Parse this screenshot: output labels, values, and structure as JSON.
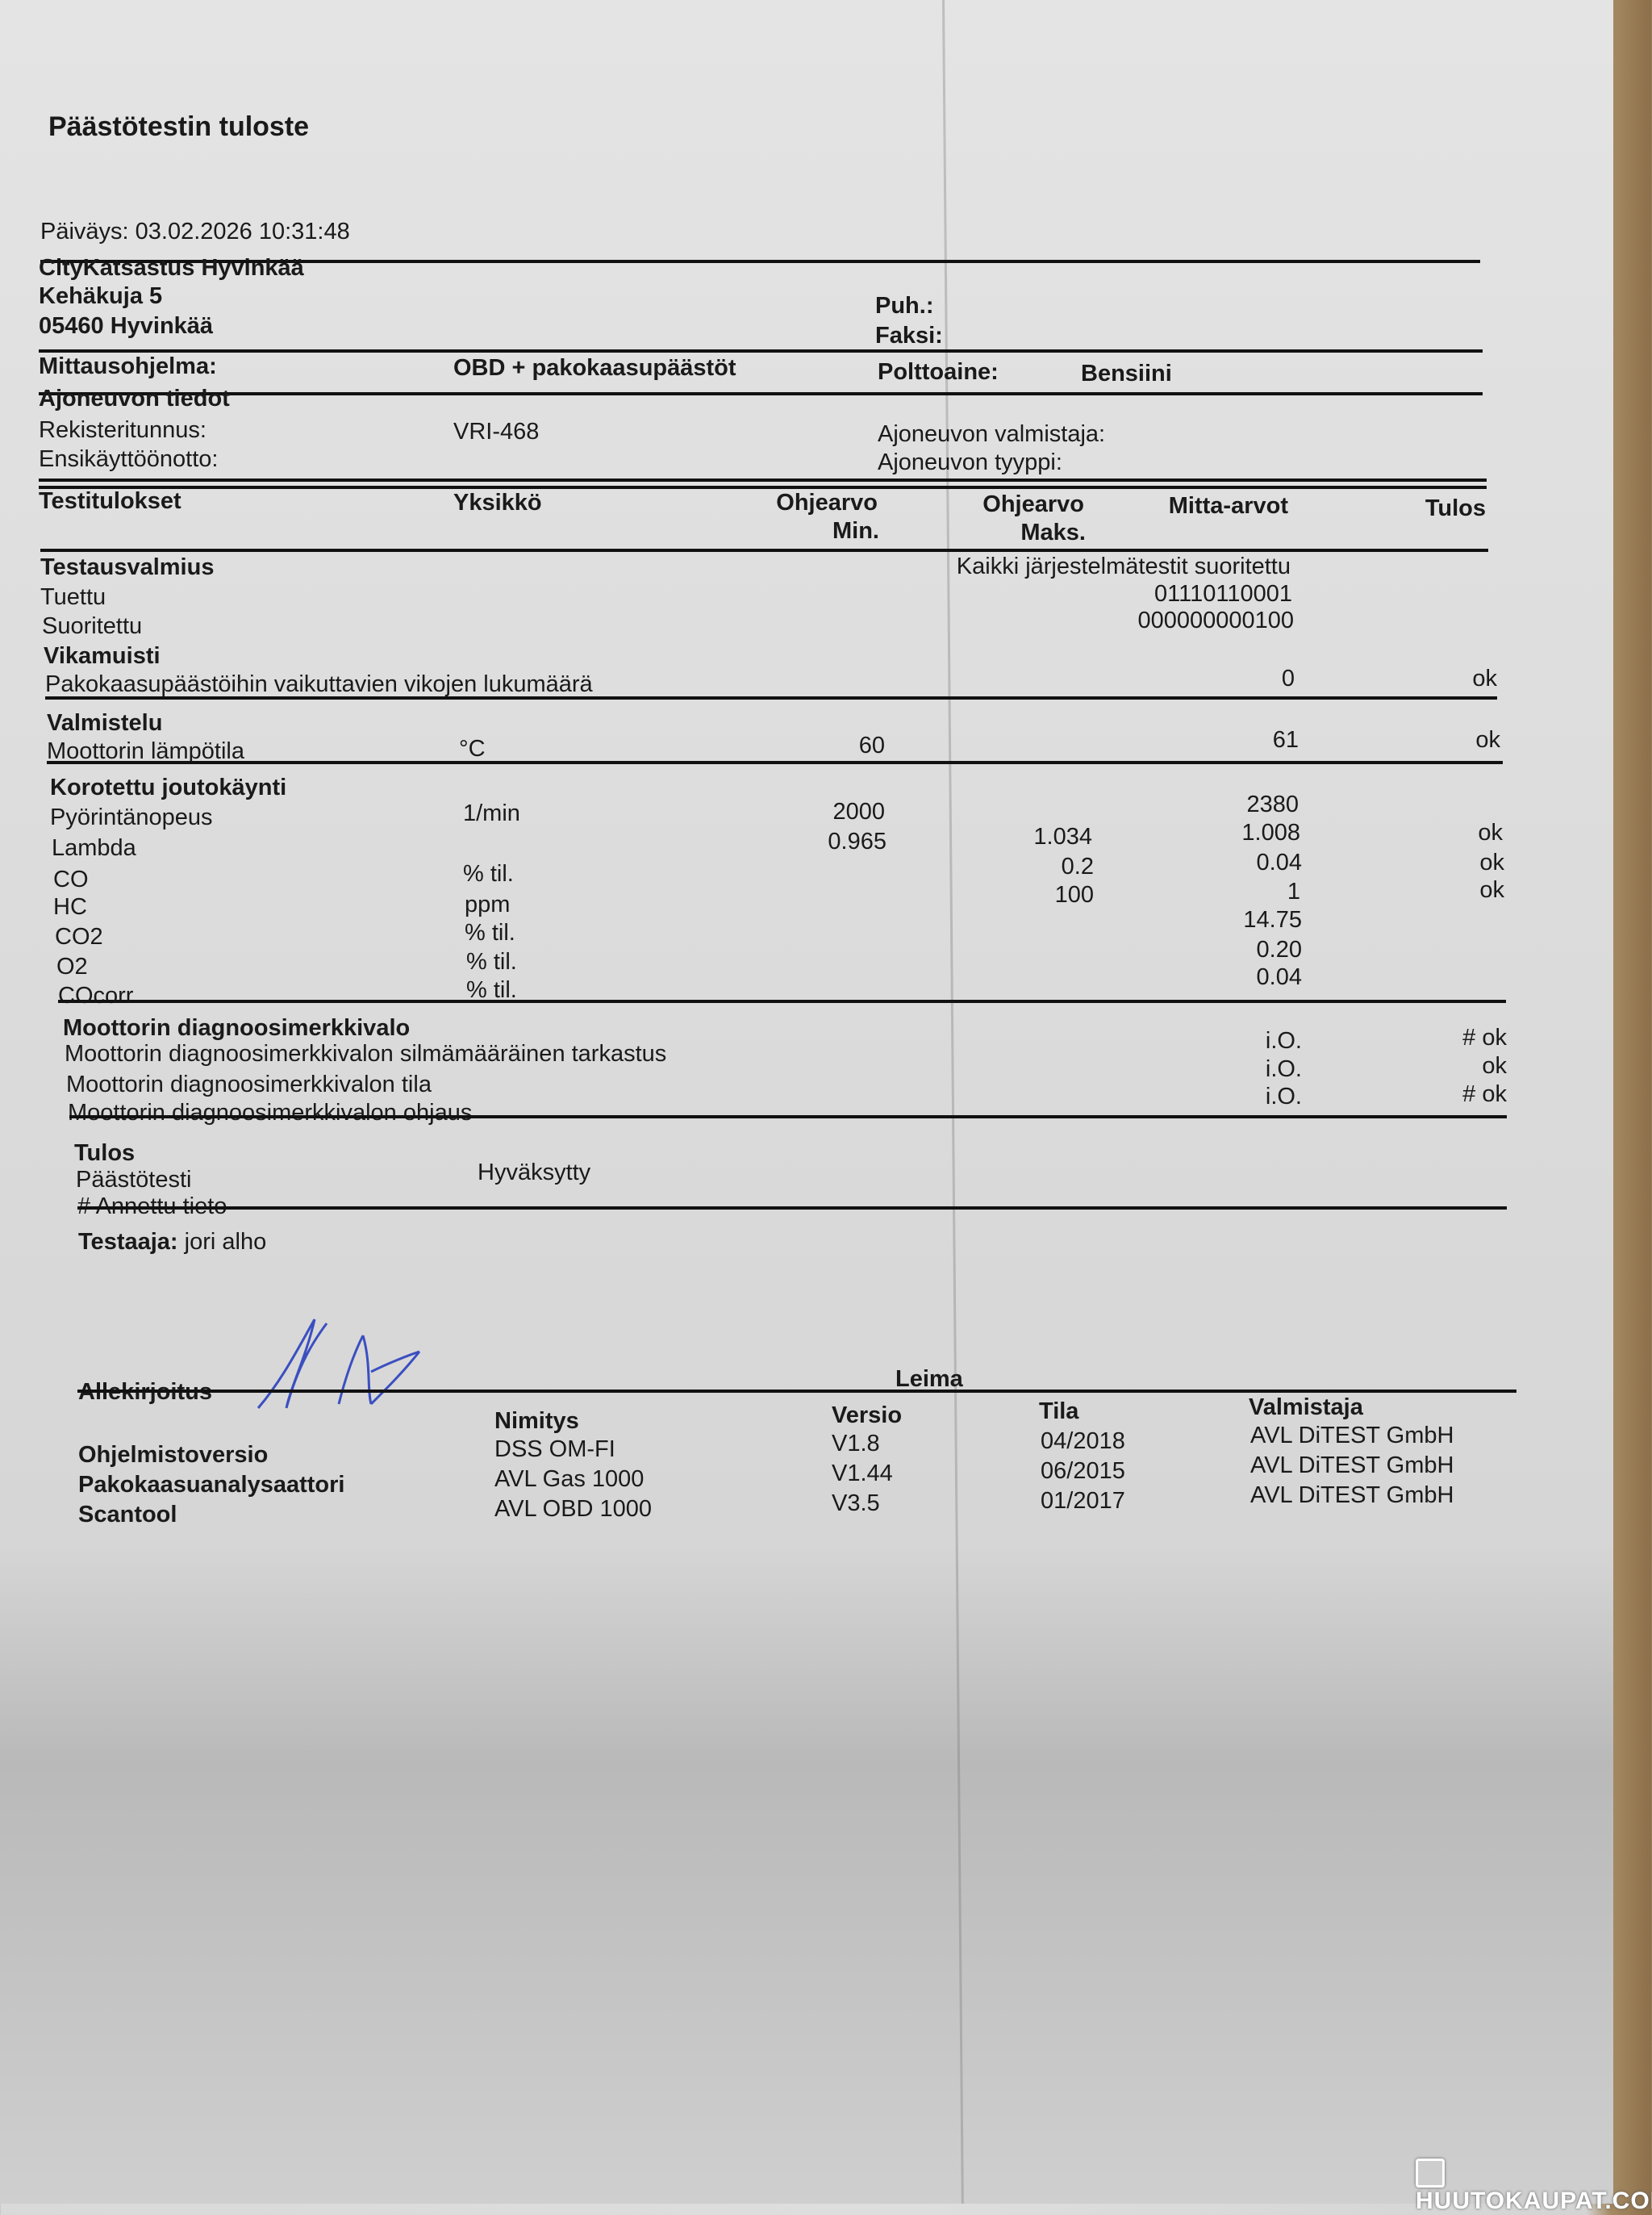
{
  "title": "Päästötestin tuloste",
  "date": "Päiväys: 03.02.2026 10:31:48",
  "station": {
    "name": "CityKatsastus Hyvinkää",
    "street": "Kehäkuja 5",
    "city": "05460  Hyvinkää",
    "phone_label": "Puh.:",
    "fax_label": "Faksi:"
  },
  "program": {
    "label": "Mittausohjelma:",
    "value": "OBD + pakokaasupäästöt",
    "fuel_label": "Polttoaine:",
    "fuel_value": "Bensiini"
  },
  "vehicle": {
    "heading": "Ajoneuvon tiedot",
    "reg_label": "Rekisteritunnus:",
    "reg_value": "VRI-468",
    "first_use_label": "Ensikäyttöönotto:",
    "maker_label": "Ajoneuvon valmistaja:",
    "type_label": "Ajoneuvon tyyppi:"
  },
  "table_header": {
    "test": "Testitulokset",
    "unit": "Yksikkö",
    "min_1": "Ohjearvo",
    "min_2": "Min.",
    "max_1": "Ohjearvo",
    "max_2": "Maks.",
    "measured": "Mitta-arvot",
    "result": "Tulos"
  },
  "readiness": {
    "heading": "Testausvalmius",
    "status": "Kaikki järjestelmätestit suoritettu",
    "supported_label": "Tuettu",
    "supported_value": "01110110001",
    "completed_label": "Suoritettu",
    "completed_value": "000000000100"
  },
  "fault_memory": {
    "heading": "Vikamuisti",
    "label": "Pakokaasupäästöihin vaikuttavien vikojen lukumäärä",
    "value": "0",
    "result": "ok"
  },
  "preparation": {
    "heading": "Valmistelu",
    "label": "Moottorin lämpötila",
    "unit": "°C",
    "min": "60",
    "value": "61",
    "result": "ok"
  },
  "idle": {
    "heading": "Korotettu joutokäynti",
    "rows": [
      {
        "label": "Pyörintänopeus",
        "unit": "1/min",
        "min": "2000",
        "max": "",
        "value": "2380",
        "result": ""
      },
      {
        "label": "Lambda",
        "unit": "",
        "min": "0.965",
        "max": "1.034",
        "value": "1.008",
        "result": "ok"
      },
      {
        "label": "CO",
        "unit": "% til.",
        "min": "",
        "max": "0.2",
        "value": "0.04",
        "result": "ok"
      },
      {
        "label": "HC",
        "unit": "ppm",
        "min": "",
        "max": "100",
        "value": "1",
        "result": "ok"
      },
      {
        "label": "CO2",
        "unit": "% til.",
        "min": "",
        "max": "",
        "value": "14.75",
        "result": ""
      },
      {
        "label": "O2",
        "unit": "% til.",
        "min": "",
        "max": "",
        "value": "0.20",
        "result": ""
      },
      {
        "label": "COcorr",
        "unit": "% til.",
        "min": "",
        "max": "",
        "value": "0.04",
        "result": ""
      }
    ]
  },
  "mil": {
    "heading": "Moottorin diagnoosimerkkivalo",
    "rows": [
      {
        "label": "Moottorin diagnoosimerkkivalon silmämääräinen tarkastus",
        "value": "i.O.",
        "result": "# ok"
      },
      {
        "label": "Moottorin diagnoosimerkkivalon tila",
        "value": "i.O.",
        "result": "ok"
      },
      {
        "label": "Moottorin diagnoosimerkkivalon ohjaus",
        "value": "i.O.",
        "result": "# ok"
      }
    ]
  },
  "outcome": {
    "heading": "Tulos",
    "label": "Päästötesti",
    "value": "Hyväksytty",
    "note": "# Annettu tieto"
  },
  "tester": {
    "label": "Testaaja:",
    "name": "jori alho"
  },
  "signature": {
    "label": "Allekirjoitus",
    "stamp_label": "Leima"
  },
  "software": {
    "headers": {
      "name": "Nimitys",
      "version": "Versio",
      "date": "Tila",
      "maker": "Valmistaja"
    },
    "rows": [
      {
        "label": "Ohjelmistoversio",
        "name": "DSS OM-FI",
        "version": "V1.8",
        "date": "04/2018",
        "maker": "AVL DiTEST GmbH"
      },
      {
        "label": "Pakokaasuanalysaattori",
        "name": "AVL Gas 1000",
        "version": "V1.44",
        "date": "06/2015",
        "maker": "AVL DiTEST GmbH"
      },
      {
        "label": "Scantool",
        "name": "AVL OBD 1000",
        "version": "V3.5",
        "date": "01/2017",
        "maker": "AVL DiTEST GmbH"
      }
    ]
  },
  "watermark": "HUUTOKAUPAT.COM",
  "colors": {
    "ink": "#1a1a1a",
    "signature_ink": "#3a4fc0",
    "paper": "#dcdcdc"
  }
}
